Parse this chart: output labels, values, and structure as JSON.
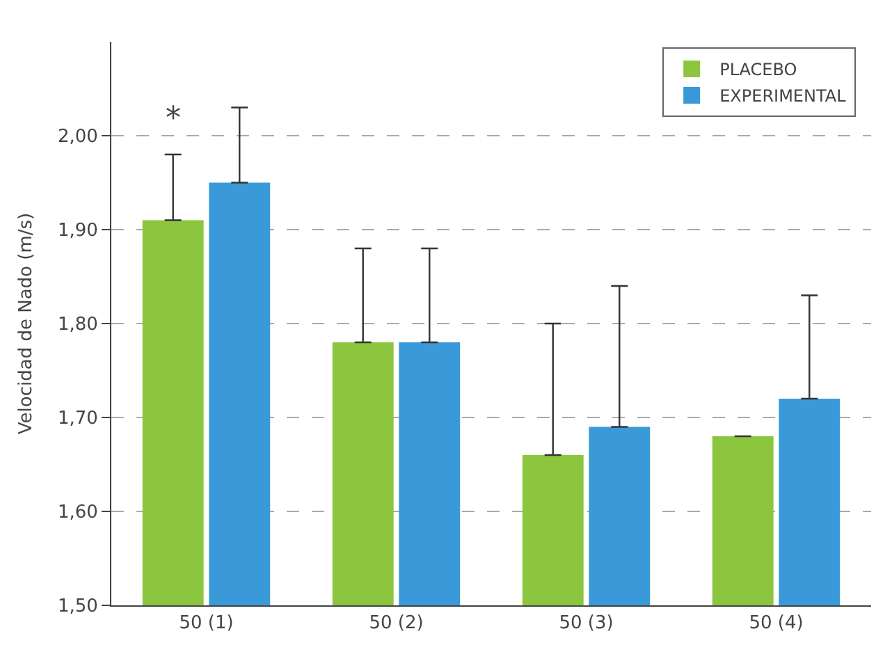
{
  "chart_data": {
    "type": "bar",
    "ylabel": "Velocidad de Nado (m/s)",
    "categories": [
      "50 (1)",
      "50 (2)",
      "50 (3)",
      "50 (4)"
    ],
    "series": [
      {
        "name": "PLACEBO",
        "color": "#8cc63f",
        "values": [
          1.91,
          1.78,
          1.66,
          1.68
        ],
        "errors": [
          [
            1.91,
            1.98
          ],
          [
            1.78,
            1.88
          ],
          [
            1.66,
            1.8
          ],
          null
        ]
      },
      {
        "name": "EXPERIMENTAL",
        "color": "#3a9ad9",
        "values": [
          1.95,
          1.78,
          1.69,
          1.72
        ],
        "errors": [
          [
            1.95,
            2.03
          ],
          [
            1.78,
            1.88
          ],
          [
            1.69,
            1.84
          ],
          [
            1.72,
            1.83
          ]
        ]
      }
    ],
    "ylim": [
      1.5,
      2.1
    ],
    "yticks": [
      {
        "value": 1.5,
        "label": "1,50"
      },
      {
        "value": 1.6,
        "label": "1,60"
      },
      {
        "value": 1.7,
        "label": "1,70"
      },
      {
        "value": 1.8,
        "label": "1,80"
      },
      {
        "value": 1.9,
        "label": "1,90"
      },
      {
        "value": 2.0,
        "label": "2,00"
      }
    ],
    "annotations": [
      "*"
    ],
    "grid": "y",
    "legend": "top right"
  }
}
